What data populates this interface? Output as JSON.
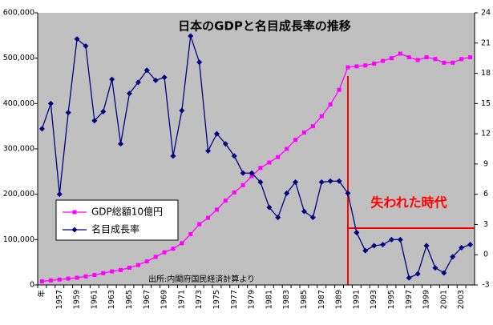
{
  "chart_data": {
    "type": "line",
    "title": "日本のGDPと名目成長率の推移",
    "annotation": "失われた時代",
    "source": "出所:内閣府国民経済計算より",
    "categories": [
      "年",
      null,
      "1957",
      null,
      "1959",
      null,
      "1961",
      null,
      "1963",
      null,
      "1965",
      null,
      "1967",
      null,
      "1969",
      null,
      "1971",
      null,
      "1973",
      null,
      "1975",
      null,
      "1977",
      null,
      "1979",
      null,
      "1981",
      null,
      "1983",
      null,
      "1985",
      null,
      "1987",
      null,
      "1989",
      null,
      "1991",
      null,
      "1993",
      null,
      "1995",
      null,
      "1997",
      null,
      "1999",
      null,
      "2001",
      null,
      "2003",
      null
    ],
    "series": [
      {
        "name": "GDP総額10億円",
        "color": "#ff00ff",
        "marker": "square",
        "values": [
          8000,
          10000,
          12000,
          14000,
          16000,
          19000,
          22000,
          26000,
          30000,
          33000,
          38000,
          44000,
          52000,
          62000,
          72000,
          80000,
          92000,
          112000,
          134000,
          148000,
          166000,
          186000,
          204000,
          220000,
          240000,
          258000,
          270000,
          282000,
          300000,
          320000,
          336000,
          350000,
          372000,
          398000,
          430000,
          480000,
          482000,
          484000,
          488000,
          494000,
          500000,
          510000,
          502000,
          496000,
          502000,
          498000,
          490000,
          490000,
          498000,
          502000
        ]
      },
      {
        "name": "名目成長率",
        "color": "#000080",
        "marker": "diamond",
        "axis": "y2",
        "values": [
          12.5,
          15.0,
          6.0,
          14.1,
          21.4,
          20.7,
          13.3,
          14.2,
          17.4,
          11.0,
          16.0,
          17.1,
          18.3,
          17.3,
          17.6,
          9.8,
          14.3,
          21.7,
          19.1,
          10.3,
          12.0,
          11.0,
          9.8,
          8.1,
          8.1,
          7.2,
          4.7,
          3.7,
          6.1,
          7.2,
          4.3,
          3.7,
          7.2,
          7.3,
          7.3,
          6.1,
          2.2,
          0.4,
          0.9,
          1.0,
          1.5,
          1.5,
          -2.3,
          -1.9,
          0.9,
          -1.3,
          -1.8,
          -0.2,
          0.7,
          1.0
        ]
      }
    ],
    "ylim": [
      0,
      600000
    ],
    "yticks": [
      0,
      {
        "value": 100000,
        "label": "100,000"
      },
      {
        "value": 200000,
        "label": "200,000"
      },
      {
        "value": 300000,
        "label": "300,000"
      },
      {
        "value": 400000,
        "label": "400,000"
      },
      {
        "value": 500000,
        "label": "500,000"
      },
      {
        "value": 600000,
        "label": "600,000"
      }
    ],
    "y2lim": [
      -3,
      24
    ],
    "y2ticks": [
      -3,
      0,
      3,
      6,
      9,
      12,
      15,
      18,
      21,
      24
    ],
    "background": "#c0c0c0",
    "grid": false
  }
}
